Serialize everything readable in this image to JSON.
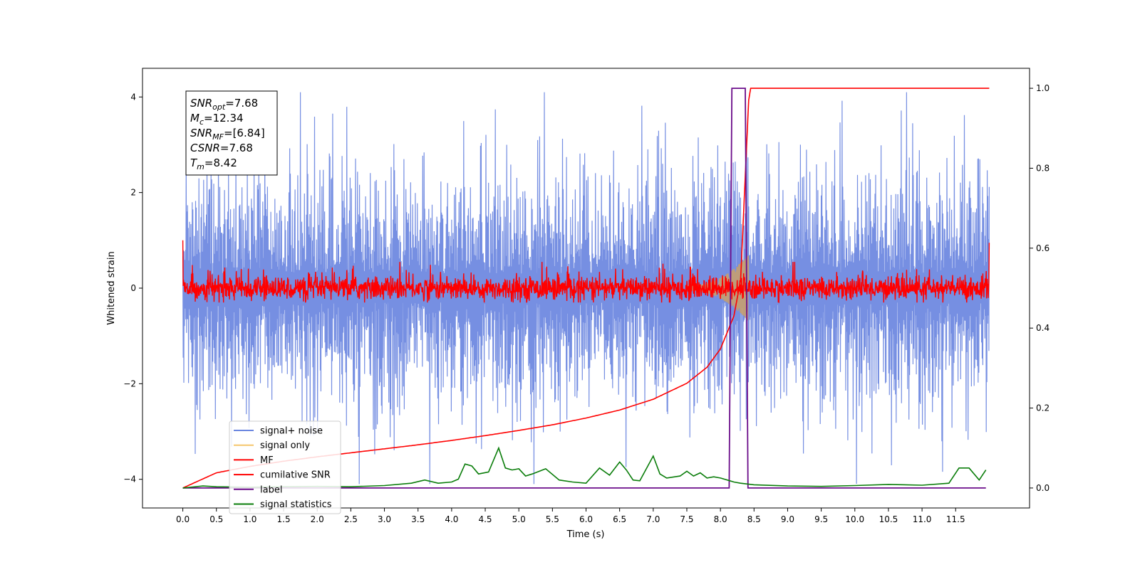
{
  "chart_data": {
    "type": "line",
    "xlabel": "Time (s)",
    "ylabel_left": "Whitened strain",
    "ylabel_right": "",
    "xlim": [
      -0.6,
      12.6
    ],
    "ylim_left": [
      -4.6,
      4.6
    ],
    "ylim_right": [
      -0.05,
      1.05
    ],
    "x_ticks": [
      0.0,
      0.5,
      1.0,
      1.5,
      2.0,
      2.5,
      3.0,
      3.5,
      4.0,
      4.5,
      5.0,
      5.5,
      6.0,
      6.5,
      7.0,
      7.5,
      8.0,
      8.5,
      9.0,
      9.5,
      10.0,
      10.5,
      11.0,
      11.5
    ],
    "x_tick_labels": [
      "0.0",
      "0.5",
      "1.0",
      "1.5",
      "2.0",
      "2.5",
      "3.0",
      "3.5",
      "4.0",
      "4.5",
      "5.0",
      "5.5",
      "6.0",
      "6.5",
      "7.0",
      "7.5",
      "8.0",
      "8.5",
      "9.0",
      "9.5",
      "10.0",
      "10.5",
      "11.0",
      "11.5"
    ],
    "y_ticks_left": [
      4,
      2,
      0,
      -2,
      -4
    ],
    "y_tick_labels_left": [
      "4",
      "2",
      "0",
      "−2",
      "−4"
    ],
    "y_ticks_right": [
      1.0,
      0.8,
      0.6,
      0.4,
      0.2,
      0.0
    ],
    "y_tick_labels_right": [
      "1.0",
      "0.8",
      "0.6",
      "0.4",
      "0.2",
      "0.0"
    ],
    "grid": false,
    "legend_placement": "lower-left",
    "annotation": {
      "lines": [
        {
          "sym": "SNR",
          "sub": "opt",
          "val": "=7.68"
        },
        {
          "sym": "M",
          "sub": "c",
          "val": "=12.34"
        },
        {
          "sym": "SNR",
          "sub": "MF",
          "val": "=[6.84]"
        },
        {
          "sym": "CSNR",
          "sub": "",
          "val": "=7.68"
        },
        {
          "sym": "T",
          "sub": "m",
          "val": "=8.42"
        }
      ]
    },
    "series": [
      {
        "name": "signal+ noise",
        "axis": "left",
        "color": "#6a86e0",
        "description_values": {
          "x_range": [
            0.0,
            12.0
          ],
          "typical_amplitude": 2.5,
          "peak_amplitude": 4.1
        }
      },
      {
        "name": "signal only",
        "axis": "left",
        "color": "#f5c66c",
        "chirp": {
          "start": 7.5,
          "end": 8.42,
          "peak_amplitude": 0.65
        }
      },
      {
        "name": "MF",
        "axis": "left",
        "color": "#ff0000",
        "description_values": {
          "x_range": [
            0.0,
            12.0
          ],
          "typical_amplitude": 0.25,
          "peak_amplitude": 0.55,
          "edge_values": [
            1.0,
            0.95
          ]
        }
      },
      {
        "name": "cumilative SNR",
        "axis": "right",
        "color": "#ff0000",
        "x": [
          0.0,
          0.5,
          1.0,
          1.5,
          2.0,
          2.5,
          3.0,
          3.5,
          4.0,
          4.5,
          5.0,
          5.5,
          6.0,
          6.5,
          7.0,
          7.5,
          7.8,
          8.0,
          8.2,
          8.3,
          8.42,
          8.45,
          12.0
        ],
        "values": [
          0.0,
          0.038,
          0.054,
          0.067,
          0.078,
          0.088,
          0.098,
          0.108,
          0.119,
          0.131,
          0.144,
          0.158,
          0.175,
          0.195,
          0.222,
          0.262,
          0.302,
          0.348,
          0.43,
          0.52,
          0.97,
          1.0,
          1.0
        ]
      },
      {
        "name": "label",
        "axis": "right",
        "color": "#6b0d8a",
        "x": [
          0.0,
          8.13,
          8.17,
          8.37,
          8.41,
          11.95
        ],
        "values": [
          0.0,
          0.0,
          1.0,
          1.0,
          0.0,
          0.0
        ]
      },
      {
        "name": "signal statistics",
        "axis": "right",
        "color": "#0a7d0a",
        "x": [
          0.0,
          0.3,
          0.5,
          1.0,
          1.5,
          2.0,
          2.5,
          3.0,
          3.4,
          3.6,
          3.8,
          4.0,
          4.1,
          4.2,
          4.3,
          4.4,
          4.55,
          4.7,
          4.8,
          4.9,
          5.0,
          5.1,
          5.2,
          5.4,
          5.6,
          5.8,
          6.0,
          6.2,
          6.35,
          6.5,
          6.6,
          6.7,
          6.8,
          7.0,
          7.1,
          7.2,
          7.4,
          7.5,
          7.6,
          7.7,
          7.8,
          7.9,
          8.0,
          8.1,
          8.2,
          8.3,
          8.5,
          9.0,
          9.5,
          10.0,
          10.5,
          11.0,
          11.4,
          11.55,
          11.7,
          11.85,
          11.95
        ],
        "values": [
          0.0,
          0.005,
          0.003,
          0.002,
          0.003,
          0.004,
          0.003,
          0.006,
          0.012,
          0.02,
          0.012,
          0.015,
          0.022,
          0.06,
          0.055,
          0.035,
          0.04,
          0.1,
          0.05,
          0.045,
          0.048,
          0.03,
          0.035,
          0.048,
          0.02,
          0.015,
          0.012,
          0.05,
          0.032,
          0.065,
          0.045,
          0.02,
          0.018,
          0.08,
          0.035,
          0.025,
          0.03,
          0.042,
          0.03,
          0.038,
          0.025,
          0.028,
          0.025,
          0.02,
          0.015,
          0.012,
          0.008,
          0.005,
          0.004,
          0.006,
          0.009,
          0.007,
          0.012,
          0.05,
          0.05,
          0.02,
          0.045
        ]
      }
    ]
  }
}
